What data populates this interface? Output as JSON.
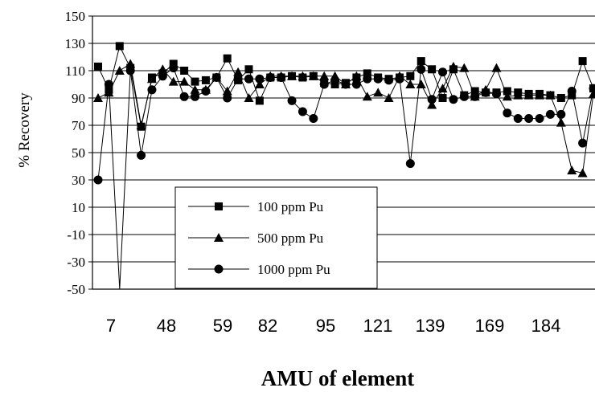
{
  "chart_data": {
    "type": "line",
    "xlabel": "AMU of element",
    "ylabel": "% Recovery",
    "ylim": [
      -50,
      150
    ],
    "yticks": [
      150,
      130,
      110,
      90,
      70,
      50,
      30,
      10,
      -10,
      -30,
      -50
    ],
    "x_tick_labels": [
      "7",
      "48",
      "59",
      "82",
      "95",
      "121",
      "139",
      "169",
      "184"
    ],
    "grid": "horizontal",
    "legend_placement": "lower-left",
    "series": [
      {
        "name": "100 ppm Pu",
        "marker": "square",
        "values": [
          113,
          96,
          128,
          112,
          69,
          105,
          108,
          115,
          110,
          102,
          103,
          105,
          119,
          103,
          111,
          88,
          105,
          105,
          106,
          105,
          106,
          101,
          100,
          101,
          105,
          108,
          105,
          104,
          105,
          106,
          117,
          111,
          90,
          111,
          92,
          95,
          94,
          94,
          95,
          94,
          93,
          93,
          92,
          90,
          92,
          117,
          97
        ]
      },
      {
        "name": "500 ppm Pu",
        "marker": "triangle",
        "values": [
          90,
          94,
          110,
          115,
          70,
          104,
          111,
          102,
          102,
          96,
          96,
          105,
          95,
          109,
          90,
          100,
          106,
          106,
          106,
          106,
          106,
          106,
          106,
          100,
          106,
          91,
          94,
          90,
          106,
          100,
          100,
          85,
          97,
          113,
          112,
          91,
          96,
          112,
          91,
          92,
          92,
          92,
          92,
          72,
          37,
          35,
          93
        ]
      },
      {
        "name": "1000 ppm Pu",
        "marker": "circle",
        "values": [
          30,
          100,
          -50,
          110,
          48,
          96,
          106,
          112,
          91,
          91,
          95,
          105,
          90,
          104,
          104,
          104,
          105,
          105,
          88,
          80,
          75,
          100,
          103,
          100,
          100,
          104,
          104,
          103,
          104,
          42,
          111,
          89,
          109,
          89,
          91,
          91,
          94,
          93,
          79,
          75,
          75,
          75,
          78,
          78,
          95,
          57,
          97
        ]
      }
    ]
  }
}
